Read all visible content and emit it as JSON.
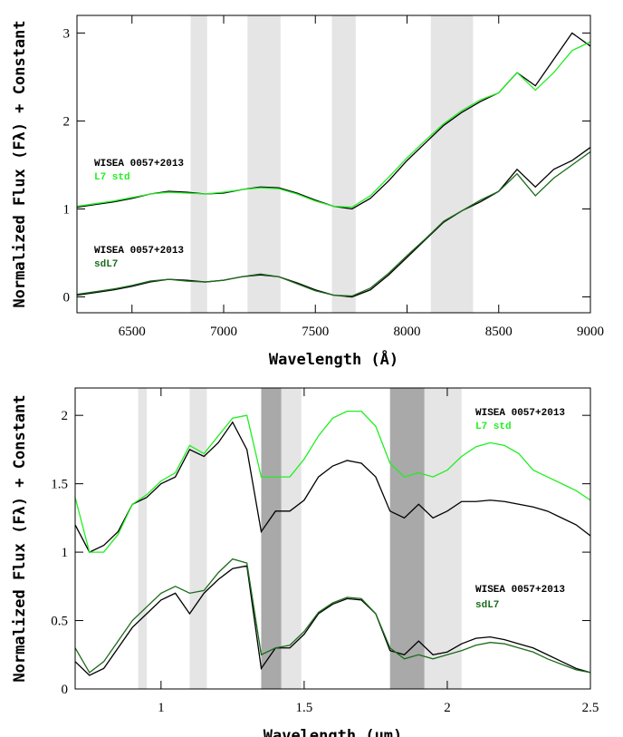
{
  "chart_data": [
    {
      "type": "line",
      "xlabel": "Wavelength (Å)",
      "ylabel": "Normalized Flux (Fλ) + Constant",
      "x": [
        6200,
        6300,
        6400,
        6500,
        6600,
        6700,
        6800,
        6900,
        7000,
        7100,
        7200,
        7300,
        7400,
        7500,
        7600,
        7700,
        7800,
        7900,
        8000,
        8100,
        8200,
        8300,
        8400,
        8500,
        8600,
        8700,
        8800,
        8900,
        9000
      ],
      "series": [
        {
          "name": "WISEA 0057+2013",
          "color": "#000000",
          "values": [
            1.02,
            1.05,
            1.08,
            1.12,
            1.17,
            1.2,
            1.19,
            1.17,
            1.18,
            1.22,
            1.25,
            1.24,
            1.18,
            1.1,
            1.03,
            1.0,
            1.12,
            1.32,
            1.55,
            1.75,
            1.95,
            2.1,
            2.22,
            2.32,
            2.55,
            2.4,
            2.7,
            3.0,
            2.85
          ]
        },
        {
          "name": "L7 std",
          "color": "#22ee22",
          "values": [
            1.03,
            1.06,
            1.09,
            1.13,
            1.17,
            1.19,
            1.18,
            1.17,
            1.19,
            1.22,
            1.24,
            1.23,
            1.17,
            1.09,
            1.03,
            1.02,
            1.15,
            1.36,
            1.58,
            1.78,
            1.97,
            2.12,
            2.24,
            2.32,
            2.55,
            2.35,
            2.55,
            2.8,
            2.9
          ]
        },
        {
          "name": "WISEA 0057+2013",
          "color": "#000000",
          "values": [
            0.02,
            0.05,
            0.08,
            0.12,
            0.17,
            0.2,
            0.19,
            0.17,
            0.19,
            0.23,
            0.25,
            0.23,
            0.16,
            0.08,
            0.02,
            0.0,
            0.08,
            0.25,
            0.45,
            0.65,
            0.85,
            0.98,
            1.08,
            1.2,
            1.45,
            1.25,
            1.45,
            1.55,
            1.7
          ]
        },
        {
          "name": "sdL7",
          "color": "#1a6b1a",
          "values": [
            0.03,
            0.06,
            0.09,
            0.13,
            0.18,
            0.2,
            0.18,
            0.17,
            0.19,
            0.23,
            0.26,
            0.23,
            0.15,
            0.07,
            0.02,
            0.01,
            0.1,
            0.27,
            0.47,
            0.66,
            0.86,
            0.98,
            1.1,
            1.2,
            1.4,
            1.15,
            1.35,
            1.5,
            1.65
          ]
        }
      ],
      "bands": [
        [
          6820,
          6910
        ],
        [
          7130,
          7310
        ],
        [
          7590,
          7720
        ],
        [
          8130,
          8360
        ]
      ],
      "band_color": "#e5e5e5",
      "dark_bands": [],
      "dark_band_color": "#a9a9a9",
      "xlim": [
        6200,
        9000
      ],
      "xticks": [
        6500,
        7000,
        7500,
        8000,
        8500,
        9000
      ],
      "ylim": [
        -0.18,
        3.2
      ],
      "yticks": [
        0,
        1,
        2,
        3
      ]
    },
    {
      "type": "line",
      "xlabel": "Wavelength (μm)",
      "ylabel": "Normalized Flux (Fλ) + Constant",
      "x": [
        0.7,
        0.75,
        0.8,
        0.85,
        0.9,
        0.95,
        1.0,
        1.05,
        1.1,
        1.15,
        1.2,
        1.25,
        1.3,
        1.35,
        1.4,
        1.45,
        1.5,
        1.55,
        1.6,
        1.65,
        1.7,
        1.75,
        1.8,
        1.85,
        1.9,
        1.95,
        2.0,
        2.05,
        2.1,
        2.15,
        2.2,
        2.25,
        2.3,
        2.35,
        2.4,
        2.45,
        2.5
      ],
      "series": [
        {
          "name": "WISEA 0057+2013",
          "color": "#000000",
          "values": [
            1.2,
            1.0,
            1.05,
            1.15,
            1.35,
            1.4,
            1.5,
            1.55,
            1.75,
            1.7,
            1.8,
            1.95,
            1.75,
            1.15,
            1.3,
            1.3,
            1.38,
            1.55,
            1.63,
            1.67,
            1.65,
            1.55,
            1.3,
            1.25,
            1.35,
            1.25,
            1.3,
            1.37,
            1.37,
            1.38,
            1.37,
            1.35,
            1.33,
            1.3,
            1.25,
            1.2,
            1.12
          ]
        },
        {
          "name": "L7 std",
          "color": "#22ee22",
          "values": [
            1.4,
            1.0,
            1.0,
            1.13,
            1.35,
            1.42,
            1.52,
            1.58,
            1.78,
            1.72,
            1.85,
            1.98,
            2.0,
            1.55,
            1.55,
            1.55,
            1.68,
            1.85,
            1.98,
            2.03,
            2.03,
            1.92,
            1.65,
            1.55,
            1.58,
            1.55,
            1.6,
            1.7,
            1.77,
            1.8,
            1.78,
            1.72,
            1.6,
            1.55,
            1.5,
            1.45,
            1.38
          ]
        },
        {
          "name": "WISEA 0057+2013",
          "color": "#000000",
          "values": [
            0.2,
            0.1,
            0.15,
            0.3,
            0.45,
            0.55,
            0.65,
            0.7,
            0.55,
            0.7,
            0.8,
            0.88,
            0.9,
            0.15,
            0.3,
            0.3,
            0.4,
            0.55,
            0.62,
            0.66,
            0.65,
            0.55,
            0.28,
            0.25,
            0.35,
            0.25,
            0.27,
            0.33,
            0.37,
            0.38,
            0.36,
            0.33,
            0.3,
            0.25,
            0.2,
            0.15,
            0.12
          ]
        },
        {
          "name": "sdL7",
          "color": "#1a6b1a",
          "values": [
            0.3,
            0.12,
            0.2,
            0.35,
            0.5,
            0.6,
            0.7,
            0.75,
            0.7,
            0.72,
            0.85,
            0.95,
            0.92,
            0.25,
            0.3,
            0.32,
            0.42,
            0.56,
            0.63,
            0.67,
            0.66,
            0.55,
            0.3,
            0.22,
            0.25,
            0.22,
            0.25,
            0.28,
            0.32,
            0.34,
            0.33,
            0.3,
            0.27,
            0.22,
            0.18,
            0.14,
            0.12
          ]
        }
      ],
      "bands": [
        [
          0.92,
          0.95
        ],
        [
          1.1,
          1.16
        ],
        [
          1.42,
          1.49
        ],
        [
          1.92,
          2.05
        ]
      ],
      "band_color": "#e5e5e5",
      "dark_bands": [
        [
          1.35,
          1.42
        ],
        [
          1.8,
          1.92
        ]
      ],
      "dark_band_color": "#a9a9a9",
      "xlim": [
        0.7,
        2.5
      ],
      "xticks": [
        1,
        1.5,
        2,
        2.5
      ],
      "ylim": [
        0,
        2.2
      ],
      "yticks": [
        0,
        0.5,
        1,
        1.5,
        2
      ]
    }
  ]
}
